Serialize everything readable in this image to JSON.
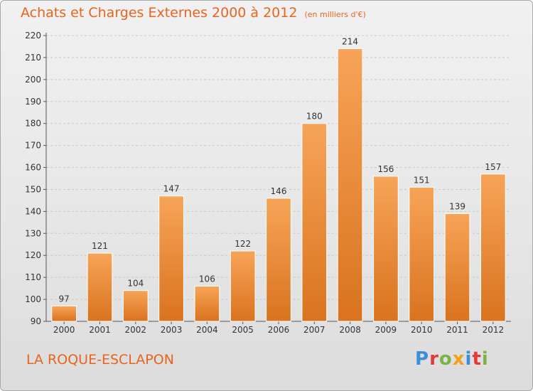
{
  "header": {
    "title": "Achats et Charges Externes 2000 à 2012",
    "subtitle": "(en milliers d'€)"
  },
  "footer": {
    "place": "LA ROQUE-ESCLAPON"
  },
  "logo": {
    "text": "Proxiti",
    "letters": [
      {
        "ch": "P",
        "color": "#3a8fd8"
      },
      {
        "ch": "r",
        "color": "#e53935"
      },
      {
        "ch": "o",
        "color": "#7cb342"
      },
      {
        "ch": "x",
        "color": "#f4a01a"
      },
      {
        "ch": "i",
        "color": "#3a8fd8"
      },
      {
        "ch": "t",
        "color": "#e53935"
      },
      {
        "ch": "i",
        "color": "#7cb342"
      }
    ]
  },
  "chart_data": {
    "type": "bar",
    "title": "Achats et Charges Externes 2000 à 2012",
    "subtitle": "(en milliers d'€)",
    "categories": [
      "2000",
      "2001",
      "2002",
      "2003",
      "2004",
      "2005",
      "2006",
      "2007",
      "2008",
      "2009",
      "2010",
      "2011",
      "2012"
    ],
    "values": [
      97,
      121,
      104,
      147,
      106,
      122,
      146,
      180,
      214,
      156,
      151,
      139,
      157
    ],
    "ylim": [
      90,
      220
    ],
    "yticks": [
      90,
      100,
      110,
      120,
      130,
      140,
      150,
      160,
      170,
      180,
      190,
      200,
      210,
      220
    ],
    "grid": true,
    "bar_color": "#f0913a",
    "bar_color_dark": "#d9731f",
    "xlabel": "",
    "ylabel": ""
  }
}
